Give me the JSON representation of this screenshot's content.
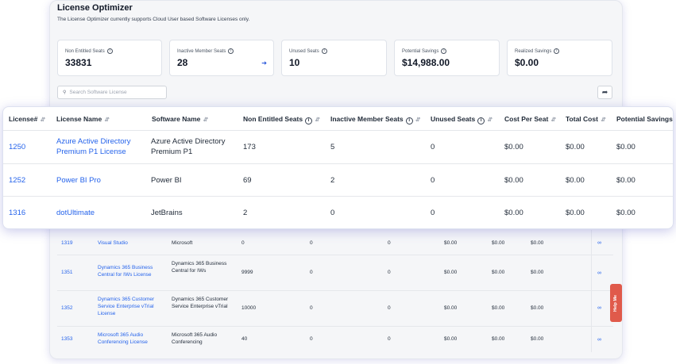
{
  "page": {
    "title": "License Optimizer",
    "subtitle": "The License Optimizer currently supports Cloud User based Software Licenses only."
  },
  "stats": [
    {
      "label": "Non Entitled Seats",
      "value": "33831"
    },
    {
      "label": "Inactive Member Seats",
      "value": "28"
    },
    {
      "label": "Unused Seats",
      "value": "10"
    },
    {
      "label": "Potential Savings",
      "value": "$14,988.00"
    },
    {
      "label": "Realized Savings",
      "value": "$0.00"
    }
  ],
  "search": {
    "placeholder": "Search Software License"
  },
  "table": {
    "columns": [
      "License#",
      "License Name",
      "Software Name",
      "Non Entitled Seats",
      "Inactive Member Seats",
      "Unused Seats",
      "Cost Per Seat",
      "Total Cost",
      "Potential Savings"
    ],
    "front_rows": [
      {
        "id": "1250",
        "name": "Azure Active Directory Premium P1 License",
        "software": "Azure Active Directory Premium P1",
        "non_entitled": "173",
        "inactive": "5",
        "unused": "0",
        "cost_per_seat": "$0.00",
        "total_cost": "$0.00",
        "potential": "$0.00"
      },
      {
        "id": "1252",
        "name": "Power BI Pro",
        "software": "Power BI",
        "non_entitled": "69",
        "inactive": "2",
        "unused": "0",
        "cost_per_seat": "$0.00",
        "total_cost": "$0.00",
        "potential": "$0.00"
      },
      {
        "id": "1316",
        "name": "dotUltimate",
        "software": "JetBrains",
        "non_entitled": "2",
        "inactive": "0",
        "unused": "0",
        "cost_per_seat": "$0.00",
        "total_cost": "$0.00",
        "potential": "$0.00"
      }
    ],
    "back_rows": [
      {
        "id": "1319",
        "name": "Visual Studio",
        "software": "Microsoft",
        "non_entitled": "0",
        "inactive": "0",
        "unused": "0",
        "cost_per_seat": "$0.00",
        "total_cost": "$0.00",
        "potential": "$0.00"
      },
      {
        "id": "1351",
        "name": "Dynamics 365 Business Central for IWs License",
        "software": "Dynamics 365 Business Central for IWs",
        "non_entitled": "9999",
        "inactive": "0",
        "unused": "0",
        "cost_per_seat": "$0.00",
        "total_cost": "$0.00",
        "potential": "$0.00"
      },
      {
        "id": "1352",
        "name": "Dynamics 365 Customer Service Enterprise vTrial License",
        "software": "Dynamics 365 Customer Service Enterprise vTrial",
        "non_entitled": "10000",
        "inactive": "0",
        "unused": "0",
        "cost_per_seat": "$0.00",
        "total_cost": "$0.00",
        "potential": "$0.00"
      },
      {
        "id": "1353",
        "name": "Microsoft 365 Audio Conferencing License",
        "software": "Microsoft 365 Audio Conferencing",
        "non_entitled": "40",
        "inactive": "0",
        "unused": "0",
        "cost_per_seat": "$0.00",
        "total_cost": "$0.00",
        "potential": "$0.00"
      }
    ]
  },
  "help": {
    "label": "Help Me"
  },
  "icons": {
    "info": "info-icon",
    "sort": "sort-icon",
    "search": "search-icon",
    "share": "share-arrow-icon",
    "row_action": "link-icon",
    "next": "arrow-right-icon"
  },
  "colors": {
    "link": "#2563eb",
    "help": "#e05a4b",
    "card_shadow": "#6e6ec8"
  }
}
